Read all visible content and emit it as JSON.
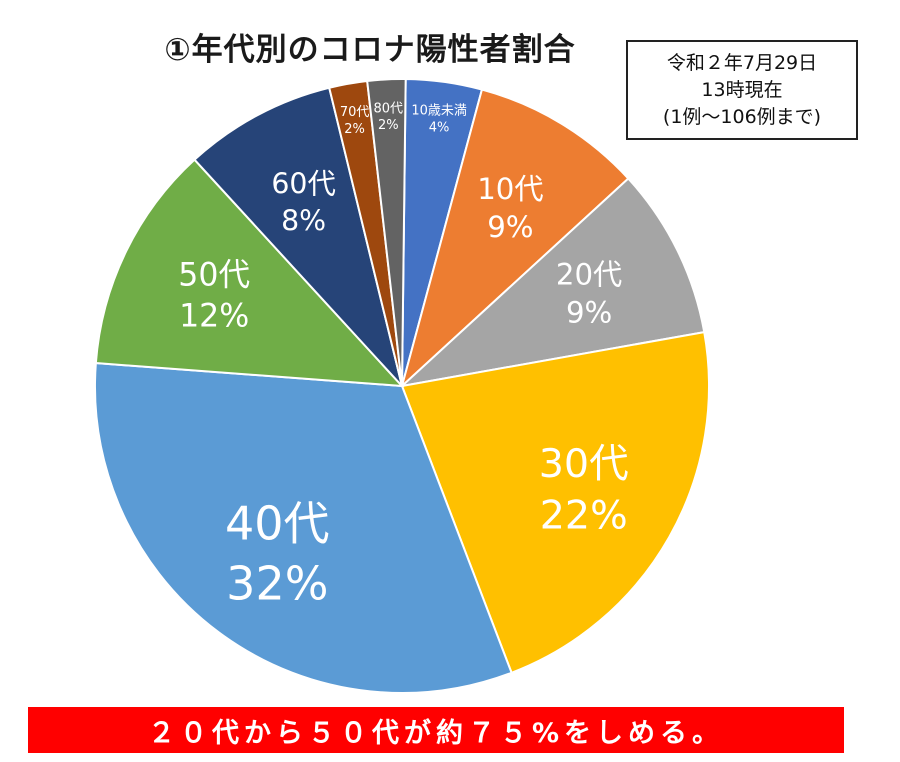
{
  "chart_data": {
    "type": "pie",
    "title": "①年代別のコロナ陽性者割合",
    "legend": "none",
    "slices": [
      {
        "label": "10歳未満",
        "percent_label": "4%",
        "value": 4,
        "color": "#4472c4"
      },
      {
        "label": "10代",
        "percent_label": "9%",
        "value": 9,
        "color": "#ed7d31"
      },
      {
        "label": "20代",
        "percent_label": "9%",
        "value": 9,
        "color": "#a5a5a5"
      },
      {
        "label": "30代",
        "percent_label": "22%",
        "value": 22,
        "color": "#ffc000"
      },
      {
        "label": "40代",
        "percent_label": "32%",
        "value": 32,
        "color": "#5b9bd5"
      },
      {
        "label": "50代",
        "percent_label": "12%",
        "value": 12,
        "color": "#70ad47"
      },
      {
        "label": "60代",
        "percent_label": "8%",
        "value": 8,
        "color": "#264478"
      },
      {
        "label": "70代",
        "percent_label": "2%",
        "value": 2,
        "color": "#9e480e"
      },
      {
        "label": "80代",
        "percent_label": "2%",
        "value": 2,
        "color": "#636363"
      }
    ]
  },
  "date_box": {
    "line1": "令和２年7月29日",
    "line2": "13時現在",
    "line3": "(1例～106例まで)"
  },
  "banner": {
    "text": "２０代から５０代が約７５%をしめる。",
    "color": "#ff0000"
  }
}
